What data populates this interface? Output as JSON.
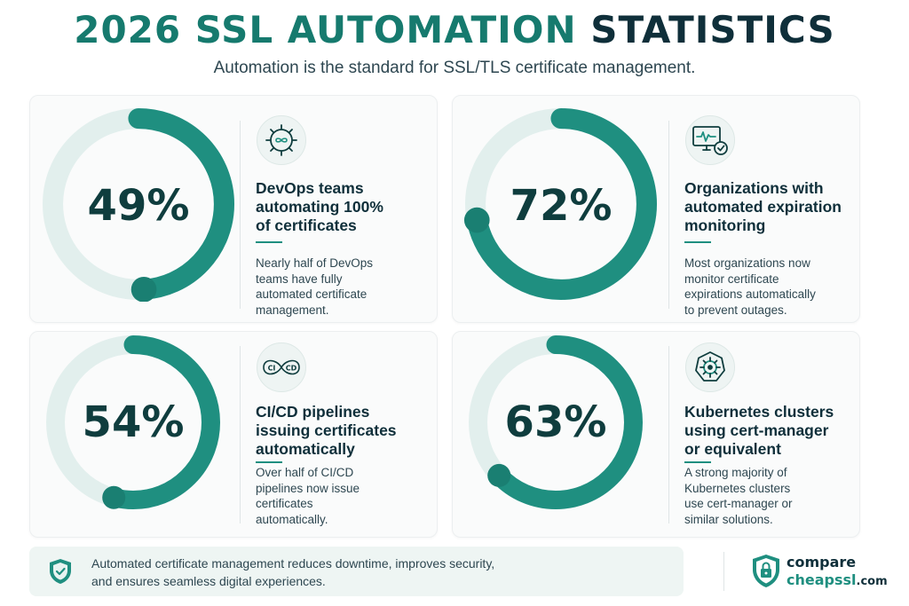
{
  "header": {
    "title_part1": "2026 SSL AUTOMATION",
    "title_part2": "STATISTICS",
    "subtitle": "Automation is the standard for SSL/TLS certificate management."
  },
  "colors": {
    "accent": "#1f8f80",
    "ring_track": "#e2efed",
    "text_dark": "#0f2f3a"
  },
  "stats": [
    {
      "percent_label": "49%",
      "percent": 49,
      "icon": "gear-infinity-icon",
      "heading": [
        "DevOps teams",
        "automating 100%",
        "of certificates"
      ],
      "description": [
        "Nearly half of DevOps",
        "teams have fully",
        "automated certificate",
        "management."
      ]
    },
    {
      "percent_label": "72%",
      "percent": 72,
      "icon": "monitor-check-icon",
      "heading": [
        "Organizations with",
        "automated expiration",
        "monitoring"
      ],
      "description": [
        "Most organizations now",
        "monitor certificate",
        "expirations automatically",
        "to prevent outages."
      ]
    },
    {
      "percent_label": "54%",
      "percent": 54,
      "icon": "ci-cd-loop-icon",
      "icon_text_left": "CI",
      "icon_text_right": "CD",
      "heading": [
        "CI/CD pipelines",
        "issuing certificates",
        "automatically"
      ],
      "description": [
        "Over half of CI/CD",
        "pipelines now issue",
        "certificates",
        "automatically."
      ]
    },
    {
      "percent_label": "63%",
      "percent": 63,
      "icon": "kubernetes-helm-icon",
      "heading": [
        "Kubernetes clusters",
        "using cert-manager",
        "or equivalent"
      ],
      "description": [
        "A strong majority of",
        "Kubernetes clusters",
        "use cert-manager or",
        "similar solutions."
      ]
    }
  ],
  "footer": {
    "message_line1": "Automated certificate management reduces downtime, improves security,",
    "message_line2": "and ensures seamless digital experiences.",
    "icon": "shield-check-icon"
  },
  "brand": {
    "line1": "compare",
    "line2": "cheapssl",
    "suffix": ".com",
    "icon": "shield-lock-icon"
  }
}
